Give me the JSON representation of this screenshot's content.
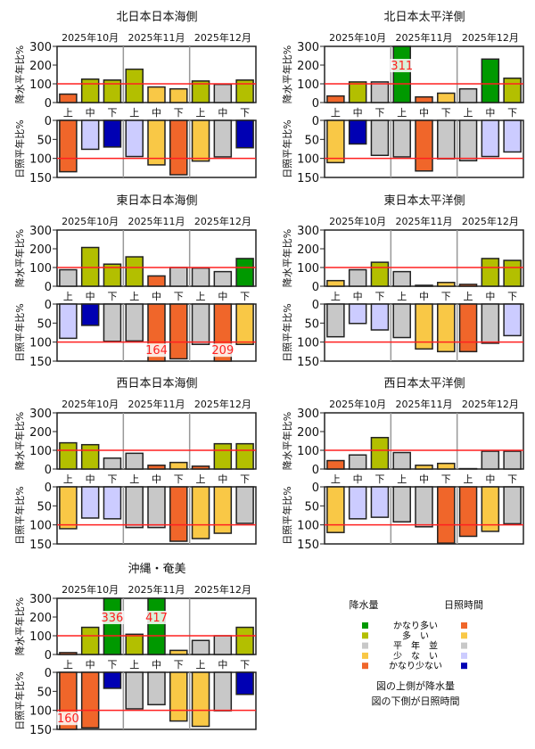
{
  "colors": {
    "very_high": "#009900",
    "high": "#b3bf00",
    "normal": "#c8c8c8",
    "low": "#f9c846",
    "very_low": "#f0662a",
    "sun_very_high": "#f0662a",
    "sun_high": "#f9c846",
    "sun_normal": "#c8c8c8",
    "sun_low": "#ccccff",
    "sun_very_low": "#0000b3",
    "reference_line": "#ff2020"
  },
  "chart_data": [
    {
      "type": "bar",
      "title": "北日本日本海側",
      "months": [
        "2025年10月",
        "2025年11月",
        "2025年12月"
      ],
      "categories": [
        "上",
        "中",
        "下",
        "上",
        "中",
        "下",
        "上",
        "中",
        "下"
      ],
      "precip": {
        "ylabel": "降水平年比%",
        "ylim": [
          0,
          300
        ],
        "ticks": [
          0,
          100,
          200,
          300
        ],
        "values": [
          45,
          125,
          120,
          178,
          83,
          73,
          115,
          97,
          120
        ],
        "classes": [
          "very_low",
          "high",
          "high",
          "high",
          "low",
          "low",
          "high",
          "normal",
          "high"
        ]
      },
      "sun": {
        "ylabel": "日照平年比%",
        "ylim": [
          0,
          150
        ],
        "ticks": [
          0,
          50,
          100,
          150
        ],
        "values": [
          135,
          76,
          70,
          95,
          117,
          143,
          107,
          96,
          72
        ],
        "classes": [
          "very_high",
          "low",
          "very_low",
          "low",
          "high",
          "very_high",
          "high",
          "normal",
          "very_low"
        ]
      }
    },
    {
      "type": "bar",
      "title": "北日本太平洋側",
      "months": [
        "2025年10月",
        "2025年11月",
        "2025年12月"
      ],
      "categories": [
        "上",
        "中",
        "下",
        "上",
        "中",
        "下",
        "上",
        "中",
        "下"
      ],
      "precip": {
        "ylabel": "降水平年比%",
        "ylim": [
          0,
          300
        ],
        "ticks": [
          0,
          100,
          200,
          300
        ],
        "values": [
          35,
          110,
          110,
          311,
          30,
          50,
          73,
          232,
          130
        ],
        "classes": [
          "very_low",
          "high",
          "normal",
          "very_high",
          "very_low",
          "low",
          "normal",
          "very_high",
          "high"
        ]
      },
      "sun": {
        "ylabel": "日照平年比%",
        "ylim": [
          0,
          150
        ],
        "ticks": [
          0,
          50,
          100,
          150
        ],
        "values": [
          111,
          62,
          92,
          96,
          133,
          101,
          106,
          95,
          83
        ],
        "classes": [
          "high",
          "very_low",
          "normal",
          "normal",
          "very_high",
          "normal",
          "normal",
          "low",
          "low"
        ]
      }
    },
    {
      "type": "bar",
      "title": "東日本日本海側",
      "months": [
        "2025年10月",
        "2025年11月",
        "2025年12月"
      ],
      "categories": [
        "上",
        "中",
        "下",
        "上",
        "中",
        "下",
        "上",
        "中",
        "下"
      ],
      "precip": {
        "ylabel": "降水平年比%",
        "ylim": [
          0,
          300
        ],
        "ticks": [
          0,
          100,
          200,
          300
        ],
        "values": [
          88,
          207,
          118,
          157,
          55,
          100,
          97,
          78,
          148
        ],
        "classes": [
          "normal",
          "high",
          "high",
          "high",
          "very_low",
          "normal",
          "normal",
          "normal",
          "very_high"
        ]
      },
      "sun": {
        "ylabel": "日照平年比%",
        "ylim": [
          0,
          150
        ],
        "ticks": [
          0,
          50,
          100,
          150
        ],
        "values": [
          90,
          56,
          98,
          97,
          164,
          144,
          106,
          209,
          106
        ],
        "classes": [
          "low",
          "very_low",
          "normal",
          "normal",
          "very_high",
          "very_high",
          "normal",
          "very_high",
          "high"
        ]
      }
    },
    {
      "type": "bar",
      "title": "東日本太平洋側",
      "months": [
        "2025年10月",
        "2025年11月",
        "2025年12月"
      ],
      "categories": [
        "上",
        "中",
        "下",
        "上",
        "中",
        "下",
        "上",
        "中",
        "下"
      ],
      "precip": {
        "ylabel": "降水平年比%",
        "ylim": [
          0,
          300
        ],
        "ticks": [
          0,
          100,
          200,
          300
        ],
        "values": [
          30,
          88,
          128,
          78,
          5,
          20,
          10,
          148,
          138
        ],
        "classes": [
          "low",
          "normal",
          "high",
          "normal",
          "very_low",
          "low",
          "very_low",
          "high",
          "high"
        ]
      },
      "sun": {
        "ylabel": "日照平年比%",
        "ylim": [
          0,
          150
        ],
        "ticks": [
          0,
          50,
          100,
          150
        ],
        "values": [
          86,
          51,
          68,
          88,
          118,
          125,
          125,
          103,
          83
        ],
        "classes": [
          "normal",
          "low",
          "low",
          "normal",
          "high",
          "high",
          "very_high",
          "normal",
          "low"
        ]
      }
    },
    {
      "type": "bar",
      "title": "西日本日本海側",
      "months": [
        "2025年10月",
        "2025年11月",
        "2025年12月"
      ],
      "categories": [
        "上",
        "中",
        "下",
        "上",
        "中",
        "下",
        "上",
        "中",
        "下"
      ],
      "precip": {
        "ylabel": "降水平年比%",
        "ylim": [
          0,
          300
        ],
        "ticks": [
          0,
          100,
          200,
          300
        ],
        "values": [
          140,
          130,
          58,
          84,
          20,
          35,
          15,
          135,
          135
        ],
        "classes": [
          "high",
          "high",
          "normal",
          "normal",
          "very_low",
          "low",
          "very_low",
          "high",
          "high"
        ]
      },
      "sun": {
        "ylabel": "日照平年比%",
        "ylim": [
          0,
          150
        ],
        "ticks": [
          0,
          50,
          100,
          150
        ],
        "values": [
          110,
          82,
          84,
          107,
          107,
          143,
          136,
          122,
          96
        ],
        "classes": [
          "high",
          "low",
          "low",
          "normal",
          "normal",
          "very_high",
          "high",
          "high",
          "normal"
        ]
      }
    },
    {
      "type": "bar",
      "title": "西日本太平洋側",
      "months": [
        "2025年10月",
        "2025年11月",
        "2025年12月"
      ],
      "categories": [
        "上",
        "中",
        "下",
        "上",
        "中",
        "下",
        "上",
        "中",
        "下"
      ],
      "precip": {
        "ylabel": "降水平年比%",
        "ylim": [
          0,
          300
        ],
        "ticks": [
          0,
          100,
          200,
          300
        ],
        "values": [
          45,
          75,
          168,
          88,
          20,
          30,
          2,
          95,
          95
        ],
        "classes": [
          "very_low",
          "normal",
          "high",
          "normal",
          "low",
          "low",
          "very_low",
          "normal",
          "normal"
        ]
      },
      "sun": {
        "ylabel": "日照平年比%",
        "ylim": [
          0,
          150
        ],
        "ticks": [
          0,
          50,
          100,
          150
        ],
        "values": [
          120,
          84,
          80,
          92,
          105,
          148,
          130,
          117,
          97
        ],
        "classes": [
          "high",
          "low",
          "low",
          "normal",
          "normal",
          "very_high",
          "very_high",
          "high",
          "normal"
        ]
      }
    },
    {
      "type": "bar",
      "title": "沖縄・奄美",
      "months": [
        "2025年10月",
        "2025年11月",
        "2025年12月"
      ],
      "categories": [
        "上",
        "中",
        "下",
        "上",
        "中",
        "下",
        "上",
        "中",
        "下"
      ],
      "precip": {
        "ylabel": "降水平年比%",
        "ylim": [
          0,
          300
        ],
        "ticks": [
          0,
          100,
          200,
          300
        ],
        "values": [
          10,
          145,
          336,
          108,
          417,
          22,
          75,
          100,
          145
        ],
        "classes": [
          "very_low",
          "high",
          "very_high",
          "high",
          "very_high",
          "low",
          "normal",
          "normal",
          "high"
        ]
      },
      "sun": {
        "ylabel": "日照平年比%",
        "ylim": [
          0,
          150
        ],
        "ticks": [
          0,
          50,
          100,
          150
        ],
        "values": [
          160,
          146,
          42,
          96,
          85,
          128,
          142,
          101,
          58
        ],
        "classes": [
          "very_high",
          "very_high",
          "very_low",
          "normal",
          "normal",
          "high",
          "high",
          "normal",
          "very_low"
        ]
      }
    }
  ],
  "legend": {
    "precip_title": "降水量",
    "sun_title": "日照時間",
    "labels": [
      "かなり多い",
      "多　い",
      "平　年　並",
      "少　な　い",
      "かなり少ない"
    ],
    "precip_classes": [
      "very_high",
      "high",
      "normal",
      "low",
      "very_low"
    ],
    "sun_classes": [
      "very_high",
      "high",
      "normal",
      "low",
      "very_low"
    ],
    "note_top": "図の上側が降水量",
    "note_bottom": "図の下側が日照時間"
  }
}
